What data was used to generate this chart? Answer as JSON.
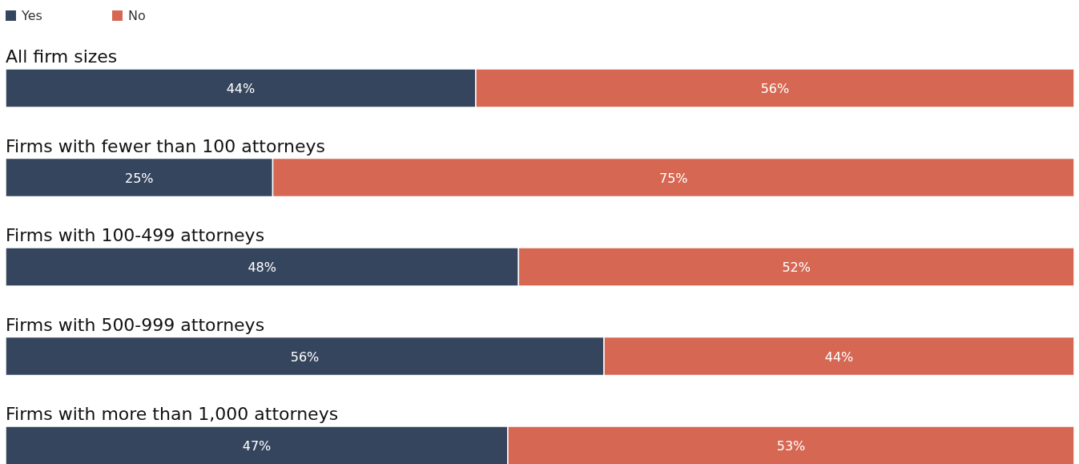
{
  "chart_data": {
    "type": "bar",
    "orientation": "horizontal",
    "stacked": true,
    "legend": "top left",
    "categories": [
      "All firm sizes",
      "Firms with fewer than 100 attorneys",
      "Firms with 100-499 attorneys",
      "Firms with 500-999 attorneys",
      "Firms with more than 1,000 attorneys"
    ],
    "series": [
      {
        "name": "Yes",
        "color": "#36455e",
        "values": [
          44,
          25,
          48,
          56,
          47
        ],
        "value_labels": [
          "44%",
          "25%",
          "48%",
          "56%",
          "47%"
        ]
      },
      {
        "name": "No",
        "color": "#d66853",
        "values": [
          56,
          75,
          52,
          44,
          53
        ],
        "value_labels": [
          "56%",
          "75%",
          "52%",
          "44%",
          "53%"
        ]
      }
    ]
  }
}
